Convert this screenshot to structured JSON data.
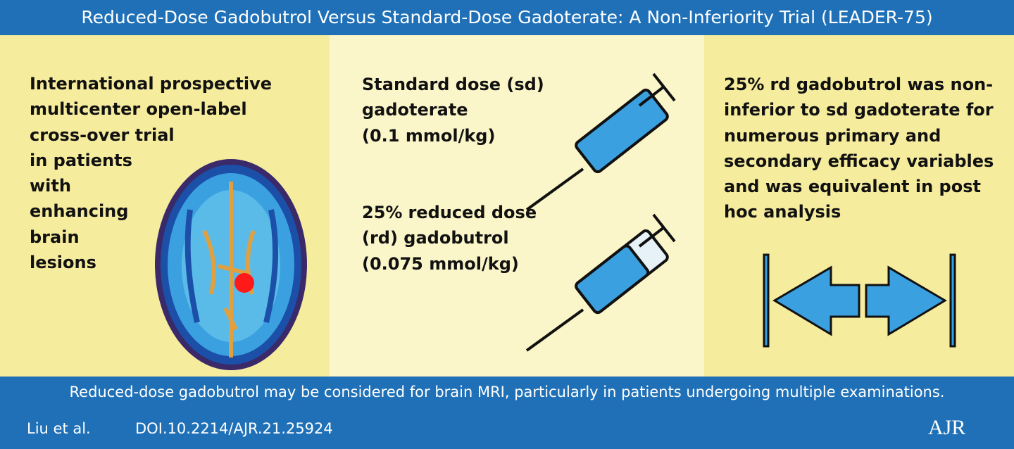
{
  "header": {
    "title": "Reduced-Dose Gadobutrol Versus Standard-Dose Gadoterate: A Non-Inferiority Trial (LEADER-75)"
  },
  "design": {
    "lines": [
      "International prospective",
      "multicenter open-label",
      "cross-over trial",
      "in patients",
      "with",
      "enhancing",
      "brain",
      "lesions"
    ]
  },
  "doses": [
    {
      "lines": [
        "Standard dose (sd)",
        "gadoterate",
        "(0.1 mmol/kg)"
      ]
    },
    {
      "emphasis": "25%",
      "lines": [
        "reduced dose",
        "(rd) gadobutrol",
        "(0.075 mmol/kg)"
      ]
    }
  ],
  "result": {
    "emphasis": "25%",
    "lines": [
      "rd gadobutrol was non-",
      "inferior to sd gadoterate for",
      "numerous primary and",
      "secondary efficacy variables",
      "and was equivalent in post",
      "hoc analysis"
    ]
  },
  "footer": {
    "conclusion": "Reduced-dose gadobutrol may be considered for brain MRI, particularly in patients undergoing multiple examinations.",
    "authors": "Liu et al.",
    "doi": "DOI.10.2214/AJR.21.25924",
    "logo": "AJR"
  }
}
